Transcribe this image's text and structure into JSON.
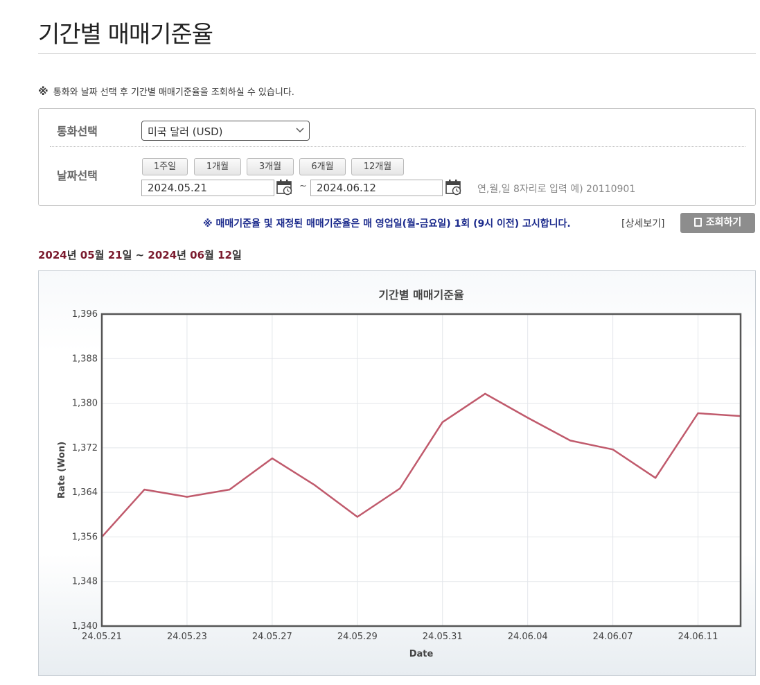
{
  "page": {
    "title": "기간별 매매기준율",
    "notice_mark": "※",
    "notice_text": "통화와 날짜 선택 후 기간별 매매기준율을 조회하실 수 있습니다."
  },
  "form": {
    "currency_label": "통화선택",
    "currency_value": "미국 달러 (USD)",
    "date_label": "날짜선택",
    "period_buttons": [
      "1주일",
      "1개월",
      "3개월",
      "6개월",
      "12개월"
    ],
    "start_date": "2024.05.21",
    "end_date": "2024.06.12",
    "tilde": "~",
    "date_hint": "연,월,일 8자리로 입력 예) 20110901"
  },
  "actions": {
    "announcement": "※ 매매기준율 및 재정된 매매기준율은 매 영업일(월-금요일) 1회 (9시 이전) 고시합니다.",
    "detail_link": "[상세보기]",
    "search_button": "조회하기"
  },
  "range": {
    "y1": "2024",
    "u1": "년 ",
    "m1": "05",
    "u2": "월 ",
    "d1": "21",
    "u3": "일 ~ ",
    "y2": "2024",
    "u4": "년 ",
    "m2": "06",
    "u5": "월 ",
    "d2": "12",
    "u6": "일"
  },
  "colors": {
    "line": "#c05a6c",
    "accent_red": "#7b1b2e",
    "announce_blue": "#1b2a8c"
  },
  "chart_data": {
    "type": "line",
    "title": "기간별 매매기준율",
    "xlabel": "Date",
    "ylabel": "Rate (Won)",
    "ylim": [
      1340,
      1396
    ],
    "yticks": [
      1340,
      1348,
      1356,
      1364,
      1372,
      1380,
      1388,
      1396
    ],
    "ytick_labels": [
      "1,340",
      "1,348",
      "1,356",
      "1,364",
      "1,372",
      "1,380",
      "1,388",
      "1,396"
    ],
    "x": [
      "24.05.21",
      "24.05.22",
      "24.05.23",
      "24.05.24",
      "24.05.27",
      "24.05.28",
      "24.05.29",
      "24.05.30",
      "24.05.31",
      "24.06.03",
      "24.06.04",
      "24.06.05",
      "24.06.07",
      "24.06.10",
      "24.06.11",
      "24.06.12"
    ],
    "xtick_labels": [
      "24.05.21",
      "24.05.23",
      "24.05.27",
      "24.05.29",
      "24.05.31",
      "24.06.04",
      "24.06.07",
      "24.06.11"
    ],
    "series": [
      {
        "values": [
          1356.0,
          1364.5,
          1363.2,
          1364.5,
          1370.1,
          1365.3,
          1359.6,
          1364.7,
          1376.6,
          1381.7,
          1377.4,
          1373.3,
          1371.7,
          1366.6,
          1378.2,
          1377.7
        ]
      }
    ],
    "grid": true,
    "legend": "none"
  }
}
